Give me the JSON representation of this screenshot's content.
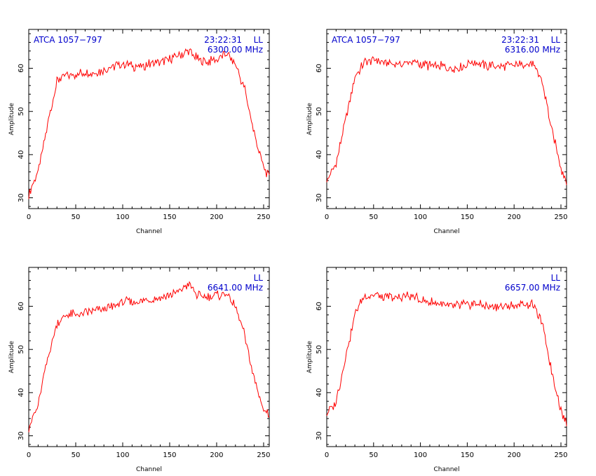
{
  "chart_data": [
    {
      "type": "line",
      "source": "ATCA 1057−797",
      "time": "23:22:31",
      "polarization": "LL",
      "frequency": "6300.00 MHz",
      "xlabel": "Channel",
      "ylabel": "Amplitude",
      "xlim": [
        0,
        256
      ],
      "ylim": [
        27.5,
        69
      ],
      "xticks": [
        0,
        50,
        100,
        150,
        200,
        250
      ],
      "yticks": [
        30,
        40,
        50,
        60
      ],
      "grid": false,
      "series": [
        {
          "color": "#ff0000",
          "x": [
            0,
            10,
            20,
            30,
            40,
            50,
            60,
            70,
            80,
            90,
            100,
            110,
            120,
            130,
            140,
            150,
            160,
            170,
            180,
            190,
            200,
            210,
            220,
            230,
            240,
            250,
            256
          ],
          "y": [
            31,
            36,
            47,
            57,
            58.5,
            58.5,
            59,
            59,
            59.5,
            60.5,
            61,
            60.5,
            60.5,
            61,
            61.5,
            62,
            63,
            64,
            62,
            61.5,
            62,
            63.5,
            61,
            55,
            45,
            37,
            35
          ]
        }
      ]
    },
    {
      "type": "line",
      "source": "ATCA 1057−797",
      "time": "23:22:31",
      "polarization": "LL",
      "frequency": "6316.00 MHz",
      "xlabel": "Channel",
      "ylabel": "Amplitude",
      "xlim": [
        0,
        256
      ],
      "ylim": [
        27.5,
        69
      ],
      "xticks": [
        0,
        50,
        100,
        150,
        200,
        250
      ],
      "yticks": [
        30,
        40,
        50,
        60
      ],
      "grid": false,
      "series": [
        {
          "color": "#ff0000",
          "x": [
            0,
            10,
            20,
            30,
            40,
            50,
            60,
            70,
            80,
            90,
            100,
            110,
            120,
            130,
            140,
            150,
            160,
            170,
            180,
            190,
            200,
            210,
            220,
            230,
            240,
            250,
            256
          ],
          "y": [
            34,
            38,
            48,
            58,
            61.5,
            62,
            61.5,
            61,
            61,
            61.5,
            61,
            60.5,
            60.5,
            60,
            60,
            61,
            61.5,
            60.5,
            60.5,
            60.5,
            60.5,
            61,
            61,
            57,
            46,
            37,
            34
          ]
        }
      ]
    },
    {
      "type": "line",
      "polarization": "LL",
      "frequency": "6641.00 MHz",
      "xlabel": "Channel",
      "ylabel": "Amplitude",
      "xlim": [
        0,
        256
      ],
      "ylim": [
        27.5,
        69
      ],
      "xticks": [
        0,
        50,
        100,
        150,
        200,
        250
      ],
      "yticks": [
        30,
        40,
        50,
        60
      ],
      "grid": false,
      "series": [
        {
          "color": "#ff0000",
          "x": [
            0,
            10,
            20,
            30,
            40,
            50,
            60,
            70,
            80,
            90,
            100,
            110,
            120,
            130,
            140,
            150,
            160,
            170,
            180,
            190,
            200,
            210,
            220,
            230,
            240,
            250,
            256
          ],
          "y": [
            32,
            37,
            48,
            56,
            58,
            58,
            58.5,
            59,
            59.5,
            60,
            61,
            61,
            61,
            61.5,
            62,
            62.5,
            63.5,
            65,
            62.5,
            62,
            62.5,
            63,
            60,
            53,
            43,
            36,
            35
          ]
        }
      ]
    },
    {
      "type": "line",
      "polarization": "LL",
      "frequency": "6657.00 MHz",
      "xlabel": "Channel",
      "ylabel": "Amplitude",
      "xlim": [
        0,
        256
      ],
      "ylim": [
        27.5,
        69
      ],
      "xticks": [
        0,
        50,
        100,
        150,
        200,
        250
      ],
      "yticks": [
        30,
        40,
        50,
        60
      ],
      "grid": false,
      "series": [
        {
          "color": "#ff0000",
          "x": [
            0,
            10,
            20,
            30,
            40,
            50,
            60,
            70,
            80,
            90,
            100,
            110,
            120,
            130,
            140,
            150,
            160,
            170,
            180,
            190,
            200,
            210,
            220,
            230,
            240,
            250,
            256
          ],
          "y": [
            35,
            38,
            48,
            58,
            62.5,
            62.5,
            62,
            62,
            62,
            62.5,
            61.5,
            61,
            60.5,
            60,
            60,
            60.5,
            60.5,
            60,
            60,
            60,
            60,
            60.5,
            60.5,
            56,
            45,
            36,
            33
          ]
        }
      ]
    }
  ]
}
